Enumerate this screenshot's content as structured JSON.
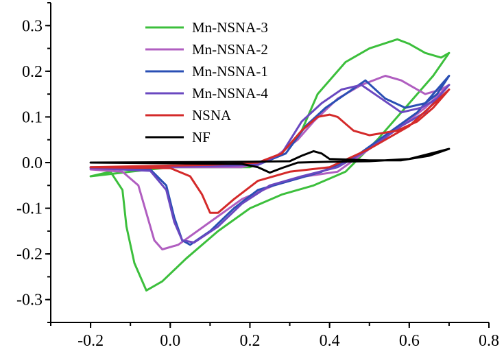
{
  "chart_data": {
    "type": "line",
    "title": "",
    "xlabel": "",
    "ylabel": "",
    "xlim": [
      -0.3,
      0.8
    ],
    "ylim": [
      -0.35,
      0.35
    ],
    "grid": false,
    "legend_position": "top-left",
    "x_ticks": [
      -0.2,
      0.0,
      0.2,
      0.4,
      0.6,
      0.8
    ],
    "x_tick_labels": [
      "-0.2",
      "0.0",
      "0.2",
      "0.4",
      "0.6",
      "0.8"
    ],
    "y_ticks": [
      -0.3,
      -0.2,
      -0.1,
      0.0,
      0.1,
      0.2,
      0.3
    ],
    "y_tick_labels": [
      "-0.3",
      "-0.2",
      "-0.1",
      "0.0",
      "0.1",
      "0.2",
      "0.3"
    ],
    "series": [
      {
        "name": "Mn-NSNA-3",
        "color": "#3cbf3c",
        "points": [
          [
            -0.2,
            -0.03
          ],
          [
            -0.15,
            -0.02
          ],
          [
            -0.12,
            -0.06
          ],
          [
            -0.11,
            -0.14
          ],
          [
            -0.09,
            -0.22
          ],
          [
            -0.06,
            -0.28
          ],
          [
            -0.02,
            -0.26
          ],
          [
            0.04,
            -0.21
          ],
          [
            0.12,
            -0.15
          ],
          [
            0.2,
            -0.1
          ],
          [
            0.28,
            -0.07
          ],
          [
            0.36,
            -0.05
          ],
          [
            0.44,
            -0.02
          ],
          [
            0.52,
            0.05
          ],
          [
            0.6,
            0.13
          ],
          [
            0.66,
            0.19
          ],
          [
            0.7,
            0.24
          ],
          [
            0.68,
            0.23
          ],
          [
            0.64,
            0.24
          ],
          [
            0.6,
            0.26
          ],
          [
            0.57,
            0.27
          ],
          [
            0.5,
            0.25
          ],
          [
            0.44,
            0.22
          ],
          [
            0.37,
            0.15
          ],
          [
            0.33,
            0.07
          ],
          [
            0.28,
            0.02
          ],
          [
            0.2,
            -0.01
          ],
          [
            0.1,
            -0.01
          ],
          [
            0.0,
            -0.01
          ],
          [
            -0.1,
            -0.02
          ],
          [
            -0.2,
            -0.03
          ]
        ]
      },
      {
        "name": "Mn-NSNA-2",
        "color": "#b05ec0",
        "points": [
          [
            -0.2,
            -0.015
          ],
          [
            -0.12,
            -0.02
          ],
          [
            -0.08,
            -0.05
          ],
          [
            -0.06,
            -0.11
          ],
          [
            -0.04,
            -0.17
          ],
          [
            -0.02,
            -0.19
          ],
          [
            0.02,
            -0.18
          ],
          [
            0.1,
            -0.13
          ],
          [
            0.18,
            -0.08
          ],
          [
            0.26,
            -0.05
          ],
          [
            0.34,
            -0.03
          ],
          [
            0.42,
            -0.02
          ],
          [
            0.5,
            0.03
          ],
          [
            0.58,
            0.08
          ],
          [
            0.64,
            0.12
          ],
          [
            0.7,
            0.17
          ],
          [
            0.68,
            0.16
          ],
          [
            0.64,
            0.15
          ],
          [
            0.62,
            0.16
          ],
          [
            0.58,
            0.18
          ],
          [
            0.54,
            0.19
          ],
          [
            0.48,
            0.17
          ],
          [
            0.42,
            0.14
          ],
          [
            0.36,
            0.09
          ],
          [
            0.32,
            0.05
          ],
          [
            0.26,
            0.01
          ],
          [
            0.18,
            -0.01
          ],
          [
            0.05,
            -0.01
          ],
          [
            -0.05,
            -0.01
          ],
          [
            -0.2,
            -0.015
          ]
        ]
      },
      {
        "name": "Mn-NSNA-1",
        "color": "#2a4fb4",
        "points": [
          [
            -0.2,
            -0.01
          ],
          [
            -0.05,
            -0.015
          ],
          [
            -0.01,
            -0.05
          ],
          [
            0.01,
            -0.12
          ],
          [
            0.03,
            -0.17
          ],
          [
            0.05,
            -0.18
          ],
          [
            0.1,
            -0.15
          ],
          [
            0.16,
            -0.1
          ],
          [
            0.22,
            -0.06
          ],
          [
            0.3,
            -0.04
          ],
          [
            0.38,
            -0.02
          ],
          [
            0.46,
            0.01
          ],
          [
            0.54,
            0.06
          ],
          [
            0.62,
            0.11
          ],
          [
            0.7,
            0.19
          ],
          [
            0.67,
            0.15
          ],
          [
            0.64,
            0.13
          ],
          [
            0.59,
            0.12
          ],
          [
            0.54,
            0.14
          ],
          [
            0.49,
            0.18
          ],
          [
            0.44,
            0.15
          ],
          [
            0.39,
            0.12
          ],
          [
            0.34,
            0.08
          ],
          [
            0.29,
            0.02
          ],
          [
            0.22,
            -0.005
          ],
          [
            0.1,
            -0.005
          ],
          [
            -0.05,
            -0.01
          ],
          [
            -0.2,
            -0.01
          ]
        ]
      },
      {
        "name": "Mn-NSNA-4",
        "color": "#6a48c0",
        "points": [
          [
            -0.2,
            -0.012
          ],
          [
            -0.05,
            -0.018
          ],
          [
            -0.01,
            -0.06
          ],
          [
            0.01,
            -0.13
          ],
          [
            0.03,
            -0.17
          ],
          [
            0.06,
            -0.175
          ],
          [
            0.12,
            -0.14
          ],
          [
            0.18,
            -0.09
          ],
          [
            0.25,
            -0.05
          ],
          [
            0.33,
            -0.03
          ],
          [
            0.42,
            -0.01
          ],
          [
            0.5,
            0.03
          ],
          [
            0.58,
            0.08
          ],
          [
            0.64,
            0.11
          ],
          [
            0.7,
            0.17
          ],
          [
            0.67,
            0.14
          ],
          [
            0.63,
            0.12
          ],
          [
            0.58,
            0.11
          ],
          [
            0.53,
            0.14
          ],
          [
            0.48,
            0.17
          ],
          [
            0.43,
            0.16
          ],
          [
            0.38,
            0.13
          ],
          [
            0.33,
            0.09
          ],
          [
            0.28,
            0.02
          ],
          [
            0.22,
            -0.005
          ],
          [
            0.1,
            -0.008
          ],
          [
            -0.05,
            -0.01
          ],
          [
            -0.2,
            -0.012
          ]
        ]
      },
      {
        "name": "NSNA",
        "color": "#d42a2a",
        "points": [
          [
            -0.2,
            -0.01
          ],
          [
            0.0,
            -0.012
          ],
          [
            0.05,
            -0.03
          ],
          [
            0.08,
            -0.07
          ],
          [
            0.1,
            -0.11
          ],
          [
            0.12,
            -0.11
          ],
          [
            0.16,
            -0.08
          ],
          [
            0.22,
            -0.04
          ],
          [
            0.3,
            -0.02
          ],
          [
            0.4,
            -0.01
          ],
          [
            0.5,
            0.03
          ],
          [
            0.6,
            0.08
          ],
          [
            0.7,
            0.16
          ],
          [
            0.66,
            0.12
          ],
          [
            0.62,
            0.09
          ],
          [
            0.57,
            0.07
          ],
          [
            0.5,
            0.06
          ],
          [
            0.46,
            0.07
          ],
          [
            0.42,
            0.1
          ],
          [
            0.4,
            0.105
          ],
          [
            0.37,
            0.1
          ],
          [
            0.33,
            0.07
          ],
          [
            0.28,
            0.02
          ],
          [
            0.22,
            0.0
          ],
          [
            0.1,
            -0.005
          ],
          [
            -0.2,
            -0.01
          ]
        ]
      },
      {
        "name": "NF",
        "color": "#000000",
        "points": [
          [
            -0.2,
            0.0
          ],
          [
            0.18,
            -0.003
          ],
          [
            0.22,
            -0.01
          ],
          [
            0.25,
            -0.022
          ],
          [
            0.28,
            -0.012
          ],
          [
            0.32,
            0.0
          ],
          [
            0.4,
            0.002
          ],
          [
            0.5,
            0.003
          ],
          [
            0.6,
            0.008
          ],
          [
            0.7,
            0.03
          ],
          [
            0.65,
            0.015
          ],
          [
            0.58,
            0.005
          ],
          [
            0.5,
            0.005
          ],
          [
            0.4,
            0.008
          ],
          [
            0.38,
            0.02
          ],
          [
            0.36,
            0.025
          ],
          [
            0.33,
            0.015
          ],
          [
            0.3,
            0.003
          ],
          [
            0.2,
            0.002
          ],
          [
            -0.2,
            0.0
          ]
        ]
      }
    ]
  }
}
